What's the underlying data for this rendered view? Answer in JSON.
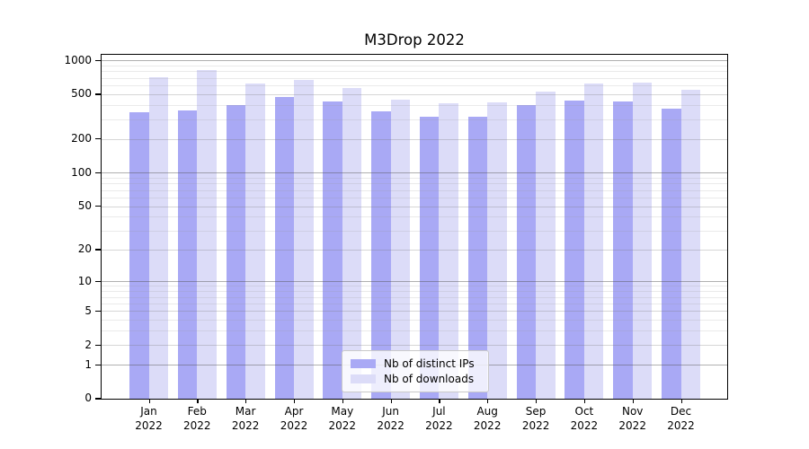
{
  "title": "M3Drop 2022",
  "legend": {
    "items": [
      {
        "label": "Nb of distinct IPs",
        "color": "#a9a9f5"
      },
      {
        "label": "Nb of downloads",
        "color": "#dcdcf8"
      }
    ]
  },
  "colors": {
    "bar_distinct_ips": "#a9a9f5",
    "bar_downloads": "#dcdcf8",
    "axis": "#000000",
    "grid_decade": "#b4b4b4",
    "grid_minor": "#e9e9e9"
  },
  "chart_data": {
    "type": "bar",
    "title": "M3Drop 2022",
    "categories": [
      "Jan",
      "Feb",
      "Mar",
      "Apr",
      "May",
      "Jun",
      "Jul",
      "Aug",
      "Sep",
      "Oct",
      "Nov",
      "Dec"
    ],
    "year_label": "2022",
    "series": [
      {
        "name": "Nb of distinct IPs",
        "color": "#a9a9f5",
        "values": [
          345,
          362,
          400,
          472,
          428,
          351,
          316,
          318,
          398,
          440,
          432,
          373
        ]
      },
      {
        "name": "Nb of downloads",
        "color": "#dcdcf8",
        "values": [
          711,
          819,
          622,
          670,
          568,
          450,
          417,
          423,
          528,
          624,
          631,
          548
        ]
      }
    ],
    "xlabel": "",
    "ylabel": "",
    "yscale": "log1p",
    "yticks": [
      1000,
      500,
      200,
      100,
      50,
      20,
      10,
      5,
      2,
      1,
      0
    ],
    "ylim": [
      0,
      1150
    ],
    "grid": true,
    "legend_position": "lower-center-inside"
  }
}
